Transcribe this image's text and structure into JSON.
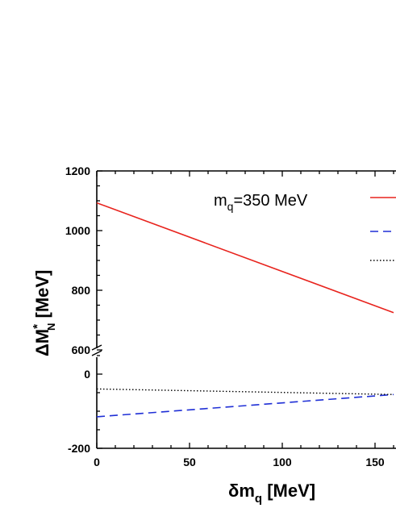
{
  "chart_data": {
    "type": "line",
    "annotation": {
      "base": "m",
      "sub": "q",
      "rest": "=350 MeV"
    },
    "xlabel": {
      "delta": "δ",
      "base": "m",
      "sub": "q",
      "rest": " [MeV]"
    },
    "ylabel": {
      "delta": "Δ",
      "base": "M",
      "sup": "*",
      "sub": "N",
      "rest": " [MeV]"
    },
    "xlim": [
      0,
      160
    ],
    "axis_break": true,
    "y_segments": [
      {
        "range": [
          600,
          1200
        ],
        "ticks": [
          "600",
          "800",
          "1000",
          "1200"
        ],
        "tick_values": [
          600,
          800,
          1000,
          1200
        ]
      },
      {
        "range": [
          -200,
          50
        ],
        "ticks": [
          "-200",
          "0"
        ],
        "tick_values": [
          -200,
          0
        ]
      }
    ],
    "x_ticks": [
      "0",
      "50",
      "100",
      "150"
    ],
    "x_tick_values": [
      0,
      50,
      100,
      150
    ],
    "series": [
      {
        "color": "#e8231d",
        "style": "solid",
        "segment": 0,
        "x": [
          0,
          160
        ],
        "y": [
          1093,
          725
        ]
      },
      {
        "color": "#1f2fd6",
        "style": "dashed",
        "segment": 1,
        "x": [
          0,
          160
        ],
        "y": [
          -115,
          -55
        ]
      },
      {
        "color": "#000000",
        "style": "dotted",
        "segment": 1,
        "x": [
          0,
          160
        ],
        "y": [
          -40,
          -55
        ]
      }
    ],
    "legend_placement": "top-right",
    "grid": false
  }
}
